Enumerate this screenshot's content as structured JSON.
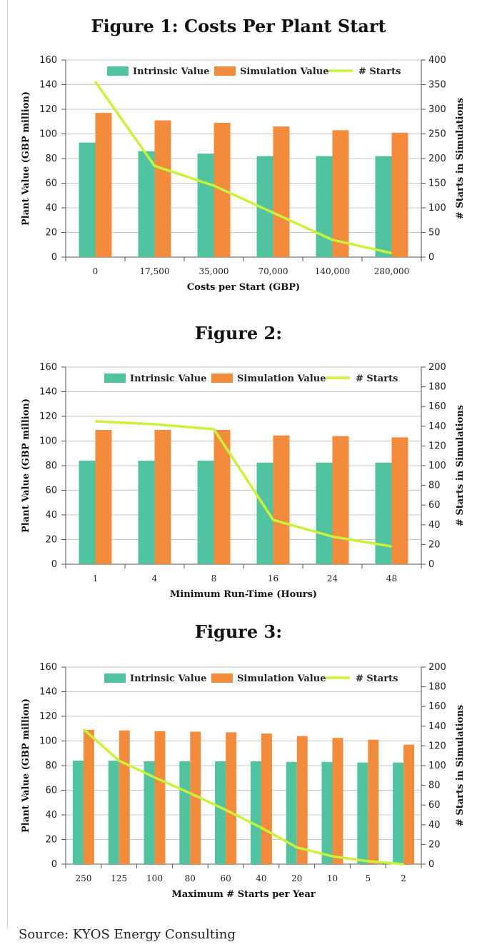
{
  "colors": {
    "intrinsic": "#52c3a1",
    "simulation": "#f28b3c",
    "starts": "#c9f23a",
    "grid": "#c8c8c8",
    "axis": "#555555"
  },
  "source": "Source:  KYOS Energy Consulting",
  "chart_data": [
    {
      "type": "bar",
      "title": "Figure 1:  Costs Per Plant Start",
      "xlabel": "Costs per Start (GBP)",
      "ylabel": "Plant Value (GBP million)",
      "y2label": "# Starts in Simulations",
      "ylim": [
        0,
        160
      ],
      "yticks": [
        "0",
        "20",
        "40",
        "60",
        "80",
        "100",
        "120",
        "140",
        "160"
      ],
      "y2lim": [
        0,
        400
      ],
      "y2ticks": [
        "0",
        "50",
        "100",
        "150",
        "200",
        "250",
        "300",
        "350",
        "400"
      ],
      "grid": true,
      "legend_position": "top",
      "categories": [
        "0",
        "17,500",
        "35,000",
        "70,000",
        "140,000",
        "280,000"
      ],
      "series": [
        {
          "name": "Intrinsic Value",
          "type": "bar",
          "axis": "left",
          "values": [
            93,
            86,
            84,
            82,
            82,
            82
          ]
        },
        {
          "name": "Simulation Value",
          "type": "bar",
          "axis": "left",
          "values": [
            117,
            111,
            109,
            106,
            103,
            101
          ]
        },
        {
          "name": "# Starts",
          "type": "line",
          "axis": "right",
          "values": [
            356,
            185,
            145,
            90,
            35,
            8
          ]
        }
      ]
    },
    {
      "type": "bar",
      "title": "Figure 2:",
      "xlabel": "Minimum Run-Time (Hours)",
      "ylabel": "Plant Value (GBP million)",
      "y2label": "# Starts in Simulations",
      "ylim": [
        0,
        160
      ],
      "yticks": [
        "0",
        "20",
        "40",
        "60",
        "80",
        "100",
        "120",
        "140",
        "160"
      ],
      "y2lim": [
        0,
        200
      ],
      "y2ticks": [
        "0",
        "20",
        "40",
        "60",
        "80",
        "100",
        "120",
        "140",
        "160",
        "180",
        "200"
      ],
      "grid": true,
      "legend_position": "top",
      "categories": [
        "1",
        "4",
        "8",
        "16",
        "24",
        "48"
      ],
      "series": [
        {
          "name": "Intrinsic Value",
          "type": "bar",
          "axis": "left",
          "values": [
            84,
            84,
            84,
            82.5,
            82.5,
            82.5
          ]
        },
        {
          "name": "Simulation Value",
          "type": "bar",
          "axis": "left",
          "values": [
            109,
            109,
            109,
            104.5,
            104,
            103
          ]
        },
        {
          "name": "# Starts",
          "type": "line",
          "axis": "right",
          "values": [
            145,
            142,
            137,
            45,
            28,
            18
          ]
        }
      ]
    },
    {
      "type": "bar",
      "title": "Figure 3:",
      "xlabel": "Maximum # Starts per Year",
      "ylabel": "Plant Value (GBP million)",
      "y2label": "# Starts in Simulations",
      "ylim": [
        0,
        160
      ],
      "yticks": [
        "0",
        "20",
        "40",
        "60",
        "80",
        "100",
        "120",
        "140",
        "160"
      ],
      "y2lim": [
        0,
        200
      ],
      "y2ticks": [
        "0",
        "20",
        "40",
        "60",
        "80",
        "100",
        "120",
        "140",
        "160",
        "180",
        "200"
      ],
      "grid": true,
      "legend_position": "top",
      "categories": [
        "250",
        "125",
        "100",
        "80",
        "60",
        "40",
        "20",
        "10",
        "5",
        "2"
      ],
      "series": [
        {
          "name": "Intrinsic Value",
          "type": "bar",
          "axis": "left",
          "values": [
            84,
            84,
            83.5,
            83.5,
            83.5,
            83.5,
            83,
            83,
            82.5,
            82.5
          ]
        },
        {
          "name": "Simulation Value",
          "type": "bar",
          "axis": "left",
          "values": [
            109,
            108.5,
            108,
            107.5,
            107,
            106,
            104,
            102.5,
            101,
            97
          ]
        },
        {
          "name": "# Starts",
          "type": "line",
          "axis": "right",
          "values": [
            137,
            105,
            88,
            72,
            55,
            37,
            17,
            8,
            3,
            0
          ]
        }
      ]
    }
  ]
}
